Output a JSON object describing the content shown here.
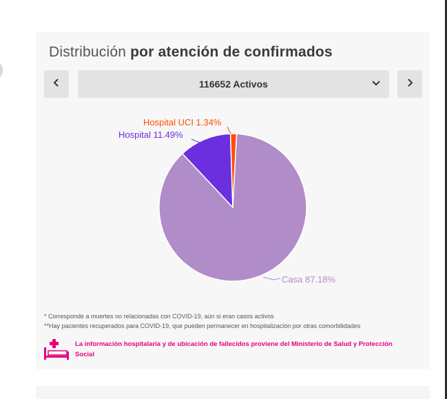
{
  "header": {
    "title_light": "Distribución",
    "title_bold": "por atención de confirmados"
  },
  "selector": {
    "prev_icon": "chevron-left-icon",
    "next_icon": "chevron-right-icon",
    "value": "116652 Activos",
    "dropdown_icon": "chevron-down-icon"
  },
  "chart_data": {
    "type": "pie",
    "slices": [
      {
        "label": "Casa",
        "value": 87.18,
        "display": "Casa 87.18%",
        "color": "#b08cc9"
      },
      {
        "label": "Hospital",
        "value": 11.49,
        "display": "Hospital 11.49%",
        "color": "#6b2fe0"
      },
      {
        "label": "Hospital UCI",
        "value": 1.34,
        "display": "Hospital UCI 1.34%",
        "color": "#ff4d00"
      }
    ]
  },
  "notes": {
    "note1": "* Corresponde a muertes no relacionadas con COVID-19, aún si eran casos activos",
    "note2": "**Hay pacientes recuperados para COVID-19, que pueden permanecer en hospitalización por otras comorbilidades"
  },
  "info": {
    "icon": "hospital-bed-icon",
    "color": "#e6007e",
    "text": "La información hospitalaria y de ubicación de fallecidos proviene del Ministerio de Salud y Protección Social"
  }
}
